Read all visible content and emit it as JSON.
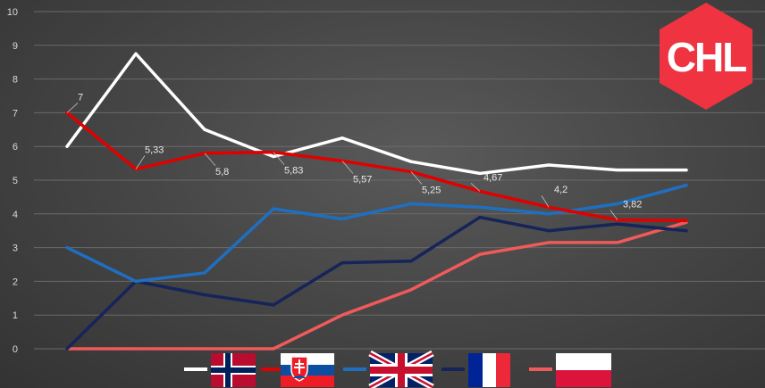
{
  "chart_data": {
    "type": "line",
    "x": [
      1,
      2,
      3,
      4,
      5,
      6,
      7,
      8,
      9,
      10
    ],
    "ylim": [
      0,
      10
    ],
    "yticks": [
      "0",
      "1",
      "2",
      "3",
      "4",
      "5",
      "6",
      "7",
      "8",
      "9",
      "10"
    ],
    "grid": true,
    "legend_position": "bottom",
    "series": [
      {
        "flag": "norway",
        "color": "#ffffff",
        "values": [
          6.0,
          8.75,
          6.5,
          5.7,
          6.25,
          5.55,
          5.2,
          5.45,
          5.3,
          5.3
        ]
      },
      {
        "flag": "slovakia",
        "color": "#e00000",
        "values": [
          7,
          5.33,
          5.8,
          5.83,
          5.57,
          5.25,
          4.67,
          4.2,
          3.82,
          3.8
        ],
        "labels": [
          "7",
          "5,33",
          "5,8",
          "5,83",
          "5,57",
          "5,25",
          "4,67",
          "4,2",
          "3,82",
          ""
        ]
      },
      {
        "flag": "great-britain",
        "color": "#1f6fc0",
        "values": [
          3.0,
          2.0,
          2.25,
          4.15,
          3.85,
          4.3,
          4.2,
          4.0,
          4.3,
          4.85
        ]
      },
      {
        "flag": "france",
        "color": "#16245a",
        "values": [
          0,
          2.0,
          1.6,
          1.3,
          2.55,
          2.6,
          3.9,
          3.5,
          3.7,
          3.5
        ]
      },
      {
        "flag": "poland",
        "color": "#f05a5a",
        "values": [
          0,
          0,
          0,
          0,
          1.0,
          1.75,
          2.8,
          3.15,
          3.15,
          3.75
        ]
      }
    ]
  },
  "logo": {
    "text": "CHL",
    "color": "#ef3340"
  }
}
